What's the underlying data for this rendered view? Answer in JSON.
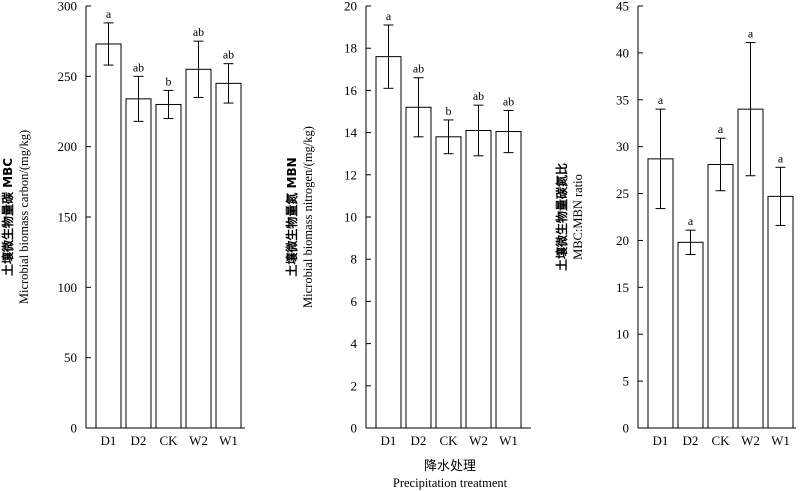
{
  "chart_data": [
    {
      "type": "bar",
      "ylabel_cn": "土壤微生物量碳 MBC",
      "ylabel_en": "Microbial biomass carbon/(mg/kg)",
      "categories": [
        "D1",
        "D2",
        "CK",
        "W2",
        "W1"
      ],
      "values": [
        273,
        234,
        230,
        255,
        245
      ],
      "errors": [
        15,
        16,
        10,
        20,
        14
      ],
      "letters": [
        "a",
        "ab",
        "b",
        "ab",
        "ab"
      ],
      "ylim": [
        0,
        300
      ],
      "yticks": [
        "0",
        "50",
        "100",
        "150",
        "200",
        "250",
        "300"
      ]
    },
    {
      "type": "bar",
      "ylabel_cn": "土壤微生物量氮 MBN",
      "ylabel_en": "Microbial biomass nitrogen/(mg/kg)",
      "categories": [
        "D1",
        "D2",
        "CK",
        "W2",
        "W1"
      ],
      "values": [
        17.6,
        15.2,
        13.8,
        14.1,
        14.05
      ],
      "errors": [
        1.5,
        1.4,
        0.8,
        1.2,
        1.0
      ],
      "letters": [
        "a",
        "ab",
        "b",
        "ab",
        "ab"
      ],
      "ylim": [
        0,
        20
      ],
      "yticks": [
        "0",
        "2",
        "4",
        "6",
        "8",
        "10",
        "12",
        "14",
        "16",
        "18",
        "20"
      ]
    },
    {
      "type": "bar",
      "ylabel_cn": "土壤微生物量碳氮比",
      "ylabel_en": "MBC:MBN ratio",
      "categories": [
        "D1",
        "D2",
        "CK",
        "W2",
        "W1"
      ],
      "values": [
        28.7,
        19.8,
        28.1,
        34.0,
        24.7
      ],
      "errors": [
        5.3,
        1.3,
        2.8,
        7.1,
        3.1
      ],
      "letters": [
        "a",
        "a",
        "a",
        "a",
        "a"
      ],
      "ylim": [
        0,
        45
      ],
      "yticks": [
        "0",
        "5",
        "10",
        "15",
        "20",
        "25",
        "30",
        "35",
        "40",
        "45"
      ]
    }
  ],
  "xlabel_cn": "降水处理",
  "xlabel_en": "Precipitation treatment"
}
